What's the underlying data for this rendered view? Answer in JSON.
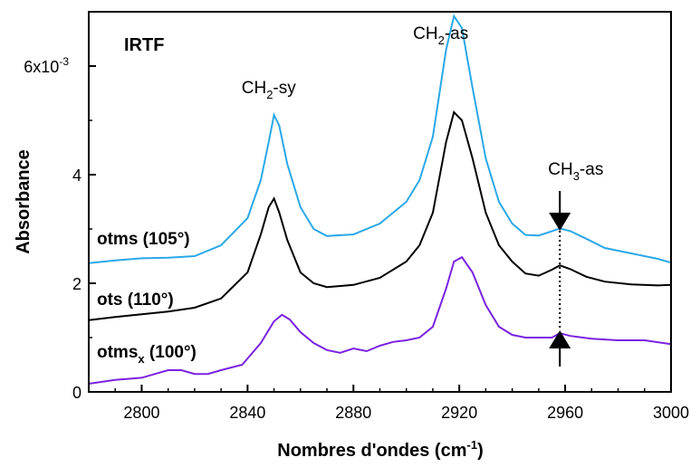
{
  "chart_data": {
    "type": "line",
    "title": "IRTF",
    "xlabel": "Nombres d'ondes (cm",
    "xlabel_sup": "-1",
    "xlabel_end": ")",
    "ylabel": "Absorbance",
    "xlim": [
      2780,
      3000
    ],
    "ylim": [
      0,
      0.007
    ],
    "x_ticks": [
      {
        "value": 2800,
        "label": "2800"
      },
      {
        "value": 2840,
        "label": "2840"
      },
      {
        "value": 2880,
        "label": "2880"
      },
      {
        "value": 2920,
        "label": "2920"
      },
      {
        "value": 2960,
        "label": "2960"
      },
      {
        "value": 3000,
        "label": "3000"
      }
    ],
    "y_ticks": [
      {
        "value": 0,
        "label": "0"
      },
      {
        "value": 0.002,
        "label": "2"
      },
      {
        "value": 0.004,
        "label": "4"
      },
      {
        "value": 0.006,
        "label": "6x10",
        "sup": "-3"
      }
    ],
    "series": [
      {
        "name": "otms (105°)",
        "color": "#29a8e8",
        "points": [
          [
            2780,
            0.00237
          ],
          [
            2790,
            0.00242
          ],
          [
            2800,
            0.00246
          ],
          [
            2810,
            0.00247
          ],
          [
            2820,
            0.0025
          ],
          [
            2830,
            0.0027
          ],
          [
            2840,
            0.0032
          ],
          [
            2845,
            0.0039
          ],
          [
            2848,
            0.0046
          ],
          [
            2850,
            0.0051
          ],
          [
            2852,
            0.0049
          ],
          [
            2855,
            0.0042
          ],
          [
            2860,
            0.0034
          ],
          [
            2865,
            0.003
          ],
          [
            2870,
            0.00287
          ],
          [
            2880,
            0.0029
          ],
          [
            2890,
            0.0031
          ],
          [
            2900,
            0.0035
          ],
          [
            2905,
            0.0039
          ],
          [
            2910,
            0.0047
          ],
          [
            2915,
            0.0063
          ],
          [
            2918,
            0.00692
          ],
          [
            2921,
            0.0067
          ],
          [
            2925,
            0.0056
          ],
          [
            2930,
            0.0043
          ],
          [
            2935,
            0.0035
          ],
          [
            2940,
            0.0031
          ],
          [
            2945,
            0.00289
          ],
          [
            2950,
            0.00288
          ],
          [
            2955,
            0.00296
          ],
          [
            2958,
            0.00301
          ],
          [
            2962,
            0.00296
          ],
          [
            2968,
            0.00282
          ],
          [
            2975,
            0.00265
          ],
          [
            2985,
            0.00255
          ],
          [
            2995,
            0.00245
          ],
          [
            3000,
            0.00238
          ]
        ]
      },
      {
        "name": "ots (110°)",
        "color": "#000000",
        "points": [
          [
            2780,
            0.00132
          ],
          [
            2790,
            0.00138
          ],
          [
            2800,
            0.00143
          ],
          [
            2810,
            0.00148
          ],
          [
            2820,
            0.00155
          ],
          [
            2830,
            0.00172
          ],
          [
            2840,
            0.0022
          ],
          [
            2845,
            0.0029
          ],
          [
            2848,
            0.0034
          ],
          [
            2850,
            0.00356
          ],
          [
            2852,
            0.0033
          ],
          [
            2855,
            0.0028
          ],
          [
            2860,
            0.0022
          ],
          [
            2865,
            0.002
          ],
          [
            2870,
            0.00193
          ],
          [
            2880,
            0.00197
          ],
          [
            2890,
            0.0021
          ],
          [
            2900,
            0.0024
          ],
          [
            2905,
            0.0027
          ],
          [
            2910,
            0.0033
          ],
          [
            2915,
            0.0046
          ],
          [
            2918,
            0.00515
          ],
          [
            2921,
            0.005
          ],
          [
            2925,
            0.0043
          ],
          [
            2930,
            0.0033
          ],
          [
            2935,
            0.0027
          ],
          [
            2940,
            0.0024
          ],
          [
            2945,
            0.00218
          ],
          [
            2950,
            0.00214
          ],
          [
            2955,
            0.00225
          ],
          [
            2958,
            0.00233
          ],
          [
            2962,
            0.00226
          ],
          [
            2968,
            0.00212
          ],
          [
            2975,
            0.00203
          ],
          [
            2985,
            0.00198
          ],
          [
            2995,
            0.00196
          ],
          [
            3000,
            0.00197
          ]
        ]
      },
      {
        "name": "otms",
        "name_sub": "x",
        "name_end": " (100°)",
        "color": "#7a22e0",
        "points": [
          [
            2780,
            0.00015
          ],
          [
            2790,
            0.00022
          ],
          [
            2800,
            0.00026
          ],
          [
            2805,
            0.00033
          ],
          [
            2810,
            0.0004
          ],
          [
            2815,
            0.0004
          ],
          [
            2820,
            0.00033
          ],
          [
            2825,
            0.00033
          ],
          [
            2830,
            0.0004
          ],
          [
            2838,
            0.0005
          ],
          [
            2845,
            0.0009
          ],
          [
            2850,
            0.0013
          ],
          [
            2853,
            0.00142
          ],
          [
            2856,
            0.00133
          ],
          [
            2860,
            0.0011
          ],
          [
            2865,
            0.0009
          ],
          [
            2870,
            0.00077
          ],
          [
            2875,
            0.00072
          ],
          [
            2880,
            0.0008
          ],
          [
            2885,
            0.00075
          ],
          [
            2890,
            0.00085
          ],
          [
            2895,
            0.00092
          ],
          [
            2900,
            0.00095
          ],
          [
            2905,
            0.001
          ],
          [
            2910,
            0.0012
          ],
          [
            2915,
            0.0019
          ],
          [
            2918,
            0.0024
          ],
          [
            2921,
            0.00248
          ],
          [
            2925,
            0.0022
          ],
          [
            2930,
            0.0016
          ],
          [
            2935,
            0.0012
          ],
          [
            2940,
            0.00105
          ],
          [
            2945,
            0.001
          ],
          [
            2950,
            0.001
          ],
          [
            2955,
            0.001
          ],
          [
            2958,
            0.00108
          ],
          [
            2962,
            0.00103
          ],
          [
            2970,
            0.00098
          ],
          [
            2980,
            0.00095
          ],
          [
            2990,
            0.00095
          ],
          [
            3000,
            0.00088
          ]
        ]
      }
    ],
    "annotations": [
      {
        "text": "CH",
        "sub": "2",
        "tail": "-sy",
        "x": 2848,
        "y": 0.0055
      },
      {
        "text": "CH",
        "sub": "2",
        "tail": "-as",
        "x": 2913,
        "y": 0.0065
      },
      {
        "text": "CH",
        "sub": "3",
        "tail": "-as",
        "x": 2964,
        "y": 0.004
      }
    ],
    "marker_line_x": 2958,
    "marker_line_y": [
      0.0011,
      0.003
    ]
  }
}
